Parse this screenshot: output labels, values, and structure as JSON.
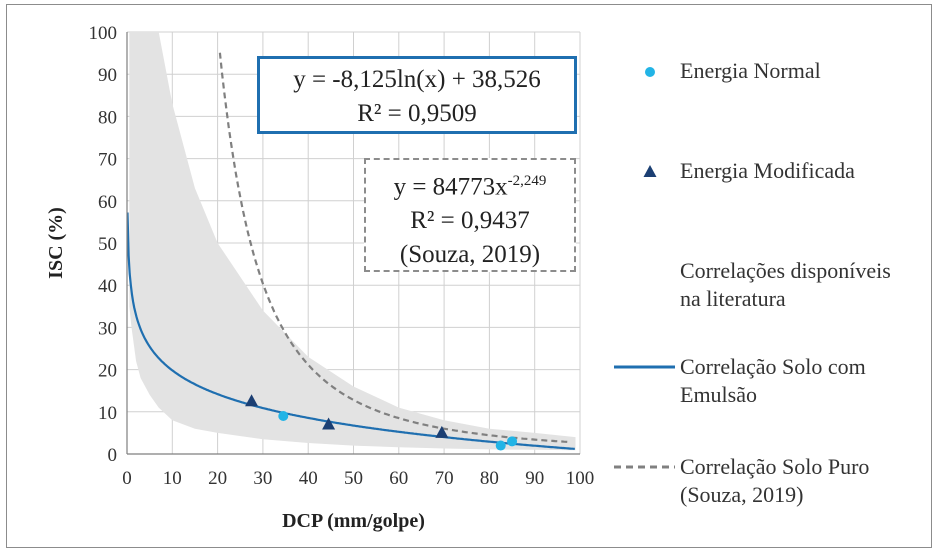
{
  "chart_data": {
    "type": "scatter",
    "xlabel": "DCP (mm/golpe)",
    "ylabel": "ISC (%)",
    "xlim": [
      0,
      100
    ],
    "ylim": [
      0,
      100
    ],
    "xticks": [
      "0",
      "10",
      "20",
      "30",
      "40",
      "50",
      "60",
      "70",
      "80",
      "90",
      "100"
    ],
    "yticks": [
      "0",
      "10",
      "20",
      "30",
      "40",
      "50",
      "60",
      "70",
      "80",
      "90",
      "100"
    ],
    "grid": true,
    "legend_position": "right",
    "series": [
      {
        "name": "Energia Normal",
        "marker": "circle",
        "color": "#22b4e6",
        "x": [
          34.5,
          82.5,
          85.0
        ],
        "y": [
          9.0,
          2.0,
          3.0
        ]
      },
      {
        "name": "Energia Modificada",
        "marker": "triangle",
        "color": "#1b3f73",
        "x": [
          27.5,
          44.5,
          69.5
        ],
        "y": [
          12.5,
          7.0,
          5.0
        ]
      },
      {
        "name": "Correlações disponíveis na literatura",
        "type": "band",
        "color": "#e3e3e3",
        "x": [
          0.5,
          1,
          2,
          3,
          5,
          7,
          10,
          15,
          20,
          30,
          40,
          50,
          60,
          70,
          80,
          90,
          99
        ],
        "upper": [
          100,
          100,
          100,
          100,
          100,
          100,
          83,
          63,
          50,
          34,
          23,
          16,
          11,
          8,
          6,
          5,
          4
        ],
        "lower": [
          35,
          30,
          22,
          18,
          14,
          11,
          8,
          6,
          5,
          3.5,
          2.6,
          2,
          1.6,
          1.3,
          1.1,
          1.0,
          0.9
        ]
      },
      {
        "name": "Correlação Solo com Emulsão",
        "type": "line",
        "color": "#1f6fb0",
        "equation": "y = -8,125ln(x) + 38,526",
        "r2": "R² = 0,9509"
      },
      {
        "name": "Correlação Solo Puro (Souza, 2019)",
        "type": "line",
        "style": "dashed",
        "color": "#808080",
        "equation_base": "y = 84773x",
        "equation_exp": "-2,249",
        "r2": "R² = 0,9437",
        "source": "(Souza, 2019)"
      }
    ]
  },
  "legend": {
    "normal": "Energia Normal",
    "modificada": "Energia Modificada",
    "literatura_1": "Correlações disponíveis",
    "literatura_2": "na literatura",
    "emulsao_1": "Correlação Solo com",
    "emulsao_2": "Emulsão",
    "puro_1": "Correlação Solo Puro",
    "puro_2": "(Souza, 2019)"
  }
}
